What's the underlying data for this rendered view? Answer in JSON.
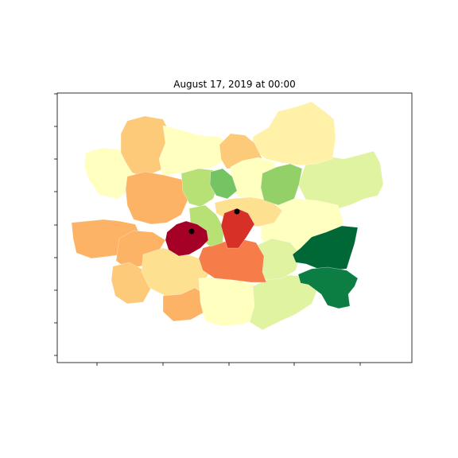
{
  "title": "August 17, 2019 at 00:00",
  "colors": {
    "dark_red": "#a50026",
    "red": "#d73027",
    "orange_red": "#f67c4a",
    "orange": "#fdb365",
    "light_orange": "#fdca79",
    "pale_orange": "#fee091",
    "cream": "#fff1a8",
    "pale_yellow": "#ffffbf",
    "yellow_green": "#e0f3a0",
    "light_green": "#b7e075",
    "green": "#93d168",
    "mid_green": "#74c464",
    "dark_green": "#006837",
    "forest_green": "#0c7e43",
    "marker": "#000000"
  },
  "markers": [
    "station-marker",
    "station-marker"
  ]
}
